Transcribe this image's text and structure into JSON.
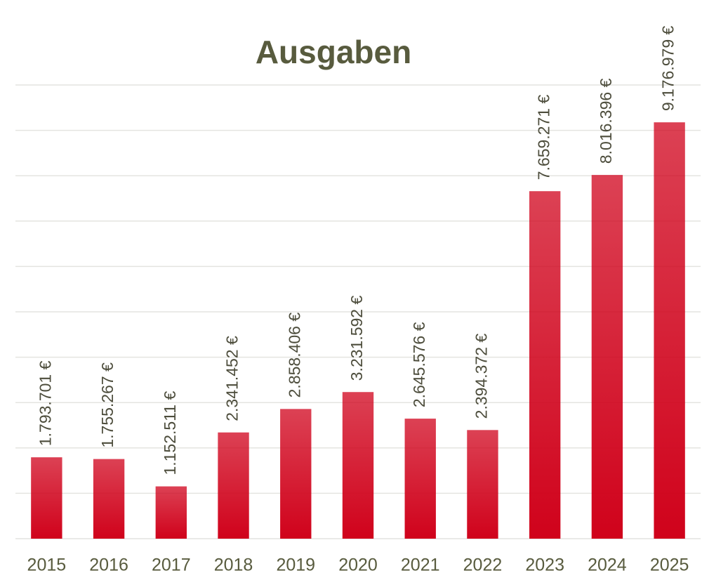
{
  "chart_data": {
    "type": "bar",
    "title": "Ausgaben",
    "categories": [
      "2015",
      "2016",
      "2017",
      "2018",
      "2019",
      "2020",
      "2021",
      "2022",
      "2023",
      "2024",
      "2025"
    ],
    "values": [
      1793701,
      1755267,
      1152511,
      2341452,
      2858406,
      3231592,
      2645576,
      2394372,
      7659271,
      8016396,
      9176979
    ],
    "value_labels": [
      "1.793.701 €",
      "1.755.267 €",
      "1.152.511 €",
      "2.341.452 €",
      "2.858.406 €",
      "3.231.592 €",
      "2.645.576 €",
      "2.394.372 €",
      "7.659.271 €",
      "8.016.396 €",
      "9.176.979 €"
    ],
    "color": "#d0021b",
    "ylim": [
      0,
      10000000
    ],
    "yticks": [
      0,
      1000000,
      2000000,
      3000000,
      4000000,
      5000000,
      6000000,
      7000000,
      8000000,
      9000000,
      10000000
    ],
    "grid": true
  }
}
